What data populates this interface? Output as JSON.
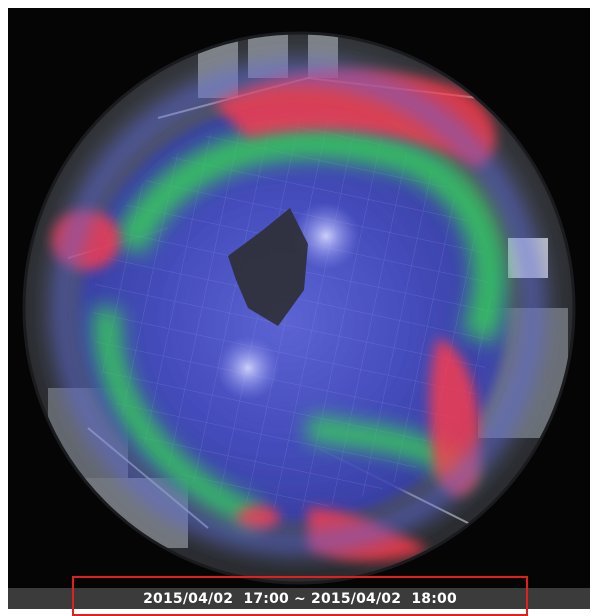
{
  "viewer": {
    "image": "fisheye-camera-heatmap",
    "heat_colors": {
      "low": "#3a3fd0",
      "medium": "#2fe04a",
      "high": "#ff3b4a"
    }
  },
  "time_bar": {
    "range_label": "2015/04/02  17:00 ~ 2015/04/02  18:00",
    "highlight_color": "#e1201d"
  }
}
